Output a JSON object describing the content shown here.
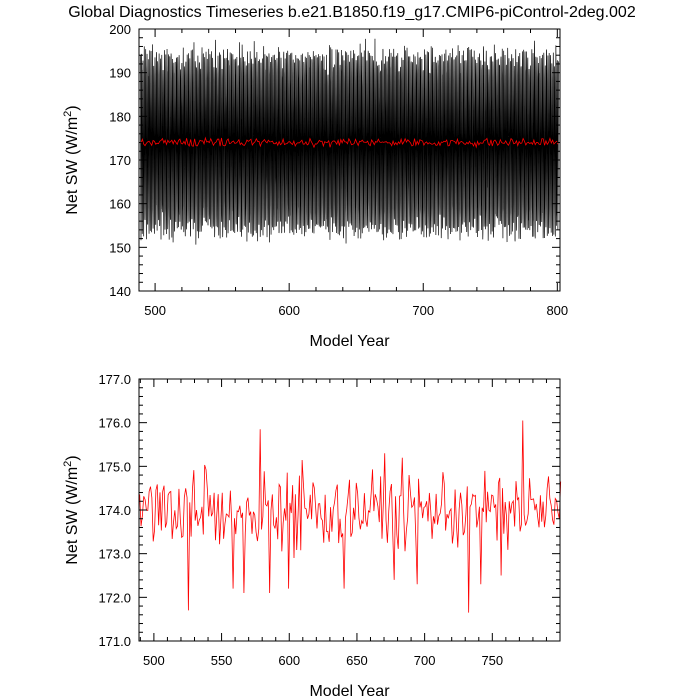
{
  "title": "Global Diagnostics Timeseries b.e21.B1850.f19_g17.CMIP6-piControl-2deg.002",
  "chart_data": [
    {
      "type": "line",
      "xlabel": "Model Year",
      "ylabel": "Net SW (W/m",
      "ylabel_sup": "2",
      "ylabel_close": ")",
      "xlim": [
        488,
        802
      ],
      "ylim": [
        140,
        200
      ],
      "x_ticks": [
        "500",
        "600",
        "700",
        "800"
      ],
      "x_tick_values": [
        500,
        600,
        700,
        800
      ],
      "y_ticks": [
        "140",
        "150",
        "160",
        "170",
        "180",
        "190",
        "200"
      ],
      "y_tick_values": [
        140,
        150,
        160,
        170,
        180,
        190,
        200
      ],
      "grid": false,
      "series": [
        {
          "name": "",
          "color": "#000000",
          "kind": "monthly",
          "x_start": 489,
          "x_end": 800,
          "mean": 174.0,
          "amplitude": 19.5,
          "spread": 3
        },
        {
          "name": "",
          "color": "#ff0000",
          "kind": "annual",
          "x_start": 489,
          "x_end": 800,
          "mean": 174.0,
          "amplitude": 0,
          "spread": 0.8
        }
      ]
    },
    {
      "type": "line",
      "xlabel": "Model Year",
      "ylabel": "Net SW (W/m",
      "ylabel_sup": "2",
      "ylabel_close": ")",
      "xlim": [
        489,
        800
      ],
      "ylim": [
        171.0,
        177.0
      ],
      "x_ticks": [
        "500",
        "550",
        "600",
        "650",
        "700",
        "750"
      ],
      "x_tick_values": [
        500,
        550,
        600,
        650,
        700,
        750
      ],
      "y_ticks": [
        "171.0",
        "172.0",
        "173.0",
        "174.0",
        "175.0",
        "176.0",
        "177.0"
      ],
      "y_tick_values": [
        171,
        172,
        173,
        174,
        175,
        176,
        177
      ],
      "grid": false,
      "series": [
        {
          "name": "",
          "color": "#ff0000",
          "kind": "annual",
          "x_start": 489,
          "x_end": 800,
          "mean": 174.0,
          "spread": 0.75,
          "peaks": [
            [
              525,
              171.7
            ],
            [
              558,
              172.2
            ],
            [
              566,
              172.1
            ],
            [
              578,
              175.85
            ],
            [
              585,
              172.1
            ],
            [
              599,
              172.2
            ],
            [
              640,
              172.2
            ],
            [
              670,
              175.3
            ],
            [
              677,
              172.4
            ],
            [
              694,
              172.3
            ],
            [
              732,
              171.65
            ],
            [
              741,
              172.3
            ],
            [
              756,
              172.5
            ],
            [
              772,
              176.05
            ]
          ]
        }
      ]
    }
  ]
}
